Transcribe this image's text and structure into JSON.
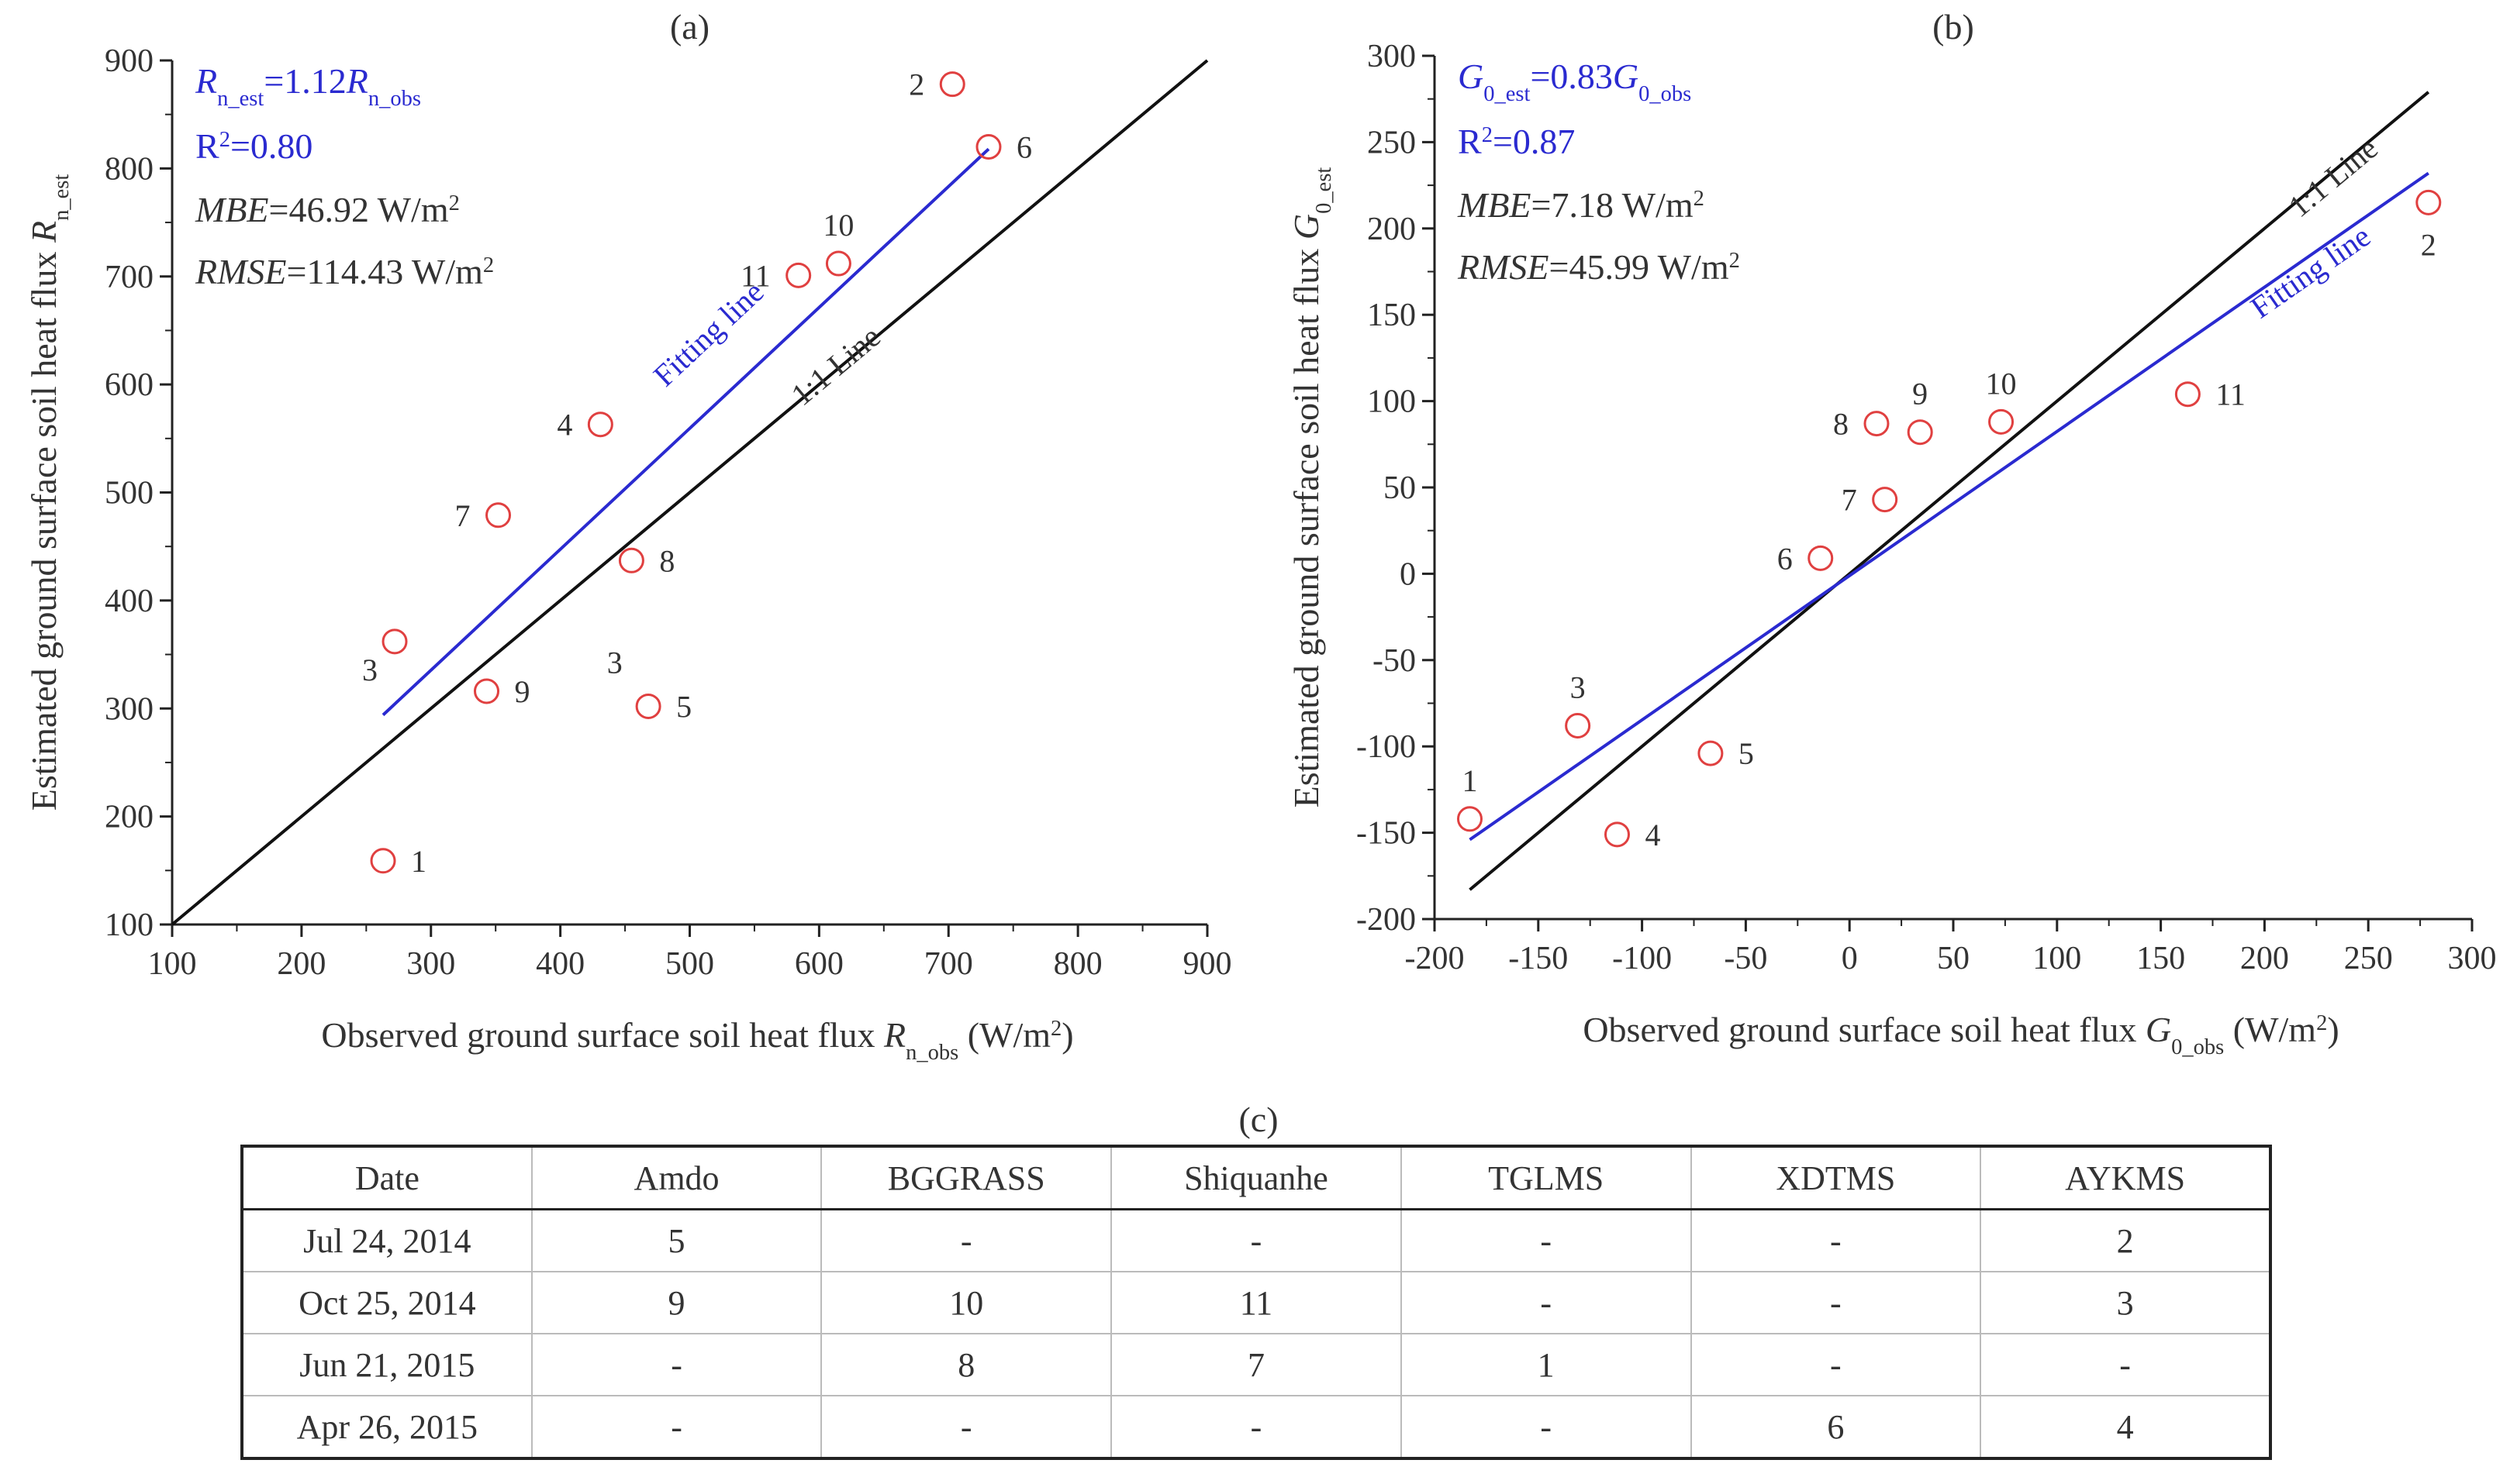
{
  "chart_data": [
    {
      "type": "scatter",
      "panel_label": "(a)",
      "xlabel": "Observed ground surface soil heat flux R",
      "xlabel_sub": "n_obs",
      "xlabel_unit": "(W/m",
      "xlabel_sup": "2",
      "xlabel_close": ")",
      "ylabel": "Estimated ground surface soil heat flux R",
      "ylabel_sub": "n_est",
      "xlim": [
        100,
        900
      ],
      "ylim": [
        100,
        900
      ],
      "xticks": [
        100,
        200,
        300,
        400,
        500,
        600,
        700,
        800,
        900
      ],
      "yticks": [
        100,
        200,
        300,
        400,
        500,
        600,
        700,
        800,
        900
      ],
      "points": [
        {
          "label": "2",
          "x": 703,
          "y": 878,
          "pos": "left"
        },
        {
          "label": "6",
          "x": 731,
          "y": 820,
          "pos": "right"
        },
        {
          "label": "10",
          "x": 615,
          "y": 712,
          "pos": "top"
        },
        {
          "label": "11",
          "x": 584,
          "y": 701,
          "pos": "left"
        },
        {
          "label": "4",
          "x": 431,
          "y": 563,
          "pos": "left"
        },
        {
          "label": "7",
          "x": 352,
          "y": 479,
          "pos": "left"
        },
        {
          "label": "8",
          "x": 455,
          "y": 437,
          "pos": "right"
        },
        {
          "label": "3",
          "x": 272,
          "y": 362,
          "pos": "below-left"
        },
        {
          "label": "9",
          "x": 343,
          "y": 316,
          "pos": "right"
        },
        {
          "label": "5",
          "x": 468,
          "y": 302,
          "pos": "right"
        },
        {
          "label": "1",
          "x": 263,
          "y": 159,
          "pos": "right"
        }
      ],
      "stray_labels": [
        {
          "label": "3",
          "x": 442,
          "y": 333
        }
      ],
      "one_to_one": {
        "label": "1:1 Line",
        "x": [
          100,
          900
        ],
        "y": [
          100,
          900
        ]
      },
      "fit": {
        "label": "Fitting line",
        "x": [
          263,
          731
        ],
        "y": [
          294,
          818
        ]
      },
      "stats": {
        "eq_left": "R",
        "eq_left_sub": "n_est",
        "eq_mid": "=1.12",
        "eq_right": "R",
        "eq_right_sub": "n_obs",
        "r2_a": "R",
        "r2_sup": "2",
        "r2_b": "=0.80",
        "mbe_name": "MBE",
        "mbe_val": "=46.92 W/m",
        "mbe_sup": "2",
        "rmse_name": "RMSE",
        "rmse_val": "=114.43 W/m",
        "rmse_sup": "2"
      }
    },
    {
      "type": "scatter",
      "panel_label": "(b)",
      "xlabel": "Observed ground surface soil heat flux G",
      "xlabel_sub": "0_obs",
      "xlabel_unit": "(W/m",
      "xlabel_sup": "2",
      "xlabel_close": ")",
      "ylabel": "Estimated ground surface soil heat flux G",
      "ylabel_sub": "0_est",
      "xlim": [
        -200,
        300
      ],
      "ylim": [
        -200,
        300
      ],
      "xticks": [
        -200,
        -150,
        -100,
        -50,
        0,
        50,
        100,
        150,
        200,
        250,
        300
      ],
      "yticks": [
        -200,
        -150,
        -100,
        -50,
        0,
        50,
        100,
        150,
        200,
        250,
        300
      ],
      "points": [
        {
          "label": "2",
          "x": 279,
          "y": 215,
          "pos": "below"
        },
        {
          "label": "11",
          "x": 163,
          "y": 104,
          "pos": "right"
        },
        {
          "label": "10",
          "x": 73,
          "y": 88,
          "pos": "top"
        },
        {
          "label": "9",
          "x": 34,
          "y": 82,
          "pos": "top"
        },
        {
          "label": "8",
          "x": 13,
          "y": 87,
          "pos": "left"
        },
        {
          "label": "7",
          "x": 17,
          "y": 43,
          "pos": "left"
        },
        {
          "label": "6",
          "x": -14,
          "y": 9,
          "pos": "left"
        },
        {
          "label": "3",
          "x": -131,
          "y": -88,
          "pos": "top"
        },
        {
          "label": "5",
          "x": -67,
          "y": -104,
          "pos": "right"
        },
        {
          "label": "1",
          "x": -183,
          "y": -142,
          "pos": "top"
        },
        {
          "label": "4",
          "x": -112,
          "y": -151,
          "pos": "right"
        }
      ],
      "stray_labels": [],
      "one_to_one": {
        "label": "1:1 Line",
        "x": [
          -183,
          279
        ],
        "y": [
          -183,
          279
        ]
      },
      "fit": {
        "label": "Fitting line",
        "x": [
          -183,
          279
        ],
        "y": [
          -154,
          232
        ]
      },
      "stats": {
        "eq_left": "G",
        "eq_left_sub": "0_est",
        "eq_mid": "=0.83",
        "eq_right": "G",
        "eq_right_sub": "0_obs",
        "r2_a": "R",
        "r2_sup": "2",
        "r2_b": "=0.87",
        "mbe_name": "MBE",
        "mbe_val": "=7.18 W/m",
        "mbe_sup": "2",
        "rmse_name": "RMSE",
        "rmse_val": "=45.99 W/m",
        "rmse_sup": "2"
      }
    },
    {
      "type": "table",
      "panel_label": "(c)",
      "columns": [
        "Date",
        "Amdo",
        "BGGRASS",
        "Shiquanhe",
        "TGLMS",
        "XDTMS",
        "AYKMS"
      ],
      "rows": [
        [
          "Jul 24, 2014",
          "5",
          "-",
          "-",
          "-",
          "-",
          "2"
        ],
        [
          "Oct 25, 2014",
          "9",
          "10",
          "11",
          "-",
          "-",
          "3"
        ],
        [
          "Jun 21, 2015",
          "-",
          "8",
          "7",
          "1",
          "-",
          "-"
        ],
        [
          "Apr 26, 2015",
          "-",
          "-",
          "-",
          "-",
          "6",
          "4"
        ]
      ]
    }
  ],
  "colors": {
    "axis": "#222222",
    "text": "#333333",
    "marker": "#e04040",
    "fit": "#2a2ad0",
    "stats_blue": "#2a2ad0",
    "one_to_one": "#111111"
  }
}
